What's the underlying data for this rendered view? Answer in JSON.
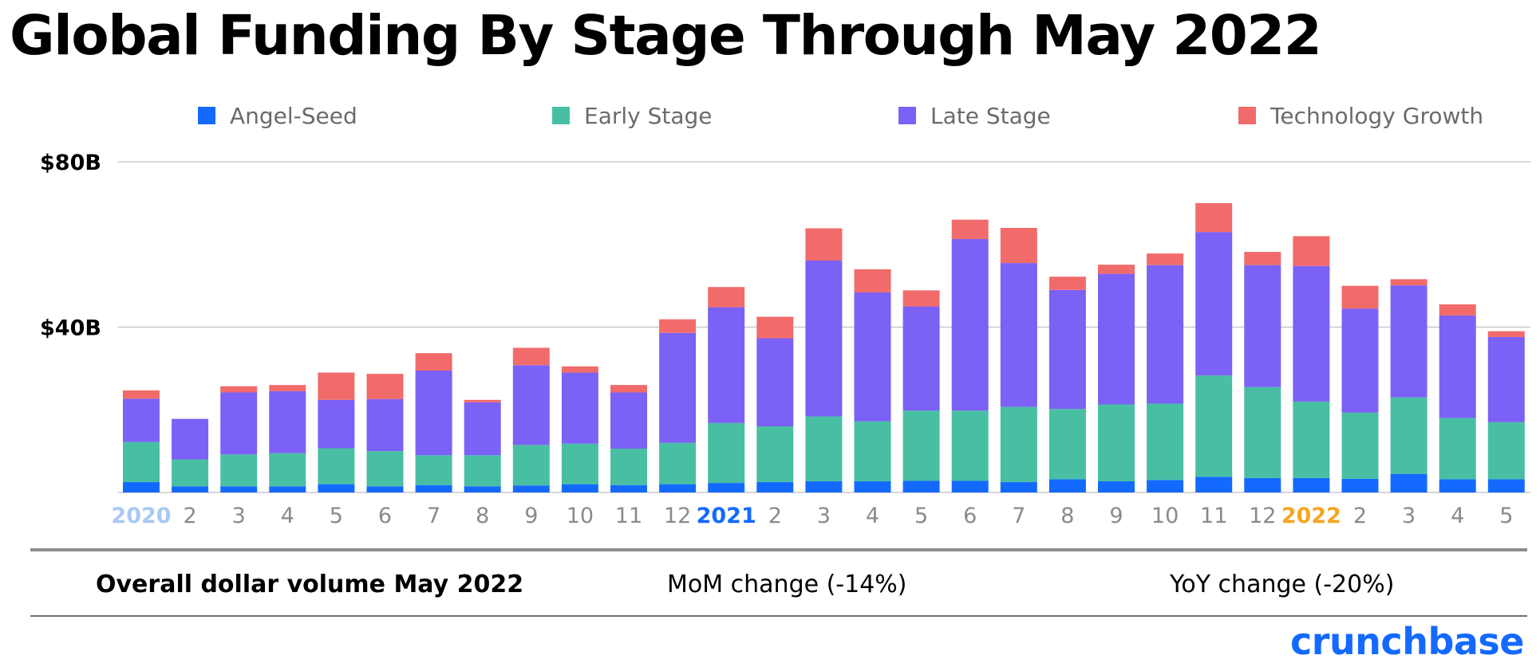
{
  "title": "Global Funding By Stage Through May 2022",
  "summary": {
    "overall": "Overall dollar volume May 2022",
    "mom": "MoM change (-14%)",
    "yoy": "YoY change (-20%)"
  },
  "brand": "crunchbase",
  "chart_data": {
    "type": "bar",
    "stacked": true,
    "categories": [
      "2020",
      "2",
      "3",
      "4",
      "5",
      "6",
      "7",
      "8",
      "9",
      "10",
      "11",
      "12",
      "2021",
      "2",
      "3",
      "4",
      "5",
      "6",
      "7",
      "8",
      "9",
      "10",
      "11",
      "12",
      "2022",
      "2",
      "3",
      "4",
      "5"
    ],
    "category_colors": {
      "2020": "#a9c8f5",
      "2021": "#146aff",
      "2022": "#f5a623",
      "default": "#8a8a8a"
    },
    "series": [
      {
        "name": "Angel-Seed",
        "color": "#146aff",
        "values": [
          2.5,
          1.5,
          1.5,
          1.5,
          2,
          1.5,
          1.8,
          1.5,
          1.7,
          2,
          1.8,
          2,
          2.3,
          2.5,
          2.7,
          2.7,
          2.8,
          2.8,
          2.5,
          3.2,
          2.7,
          3,
          3.8,
          3.5,
          3.5,
          3.3,
          4.5,
          3.2,
          3.2
        ]
      },
      {
        "name": "Early Stage",
        "color": "#48bfa3",
        "values": [
          9.7,
          6.5,
          7.7,
          8,
          8.7,
          8.5,
          7.2,
          7.5,
          9.8,
          9.8,
          8.8,
          10,
          14.5,
          13.5,
          15.7,
          14.5,
          17,
          17,
          18.2,
          17,
          18.6,
          18.5,
          24.5,
          22,
          18.5,
          16,
          18.5,
          14.8,
          13.8
        ]
      },
      {
        "name": "Late Stage",
        "color": "#7b61f5",
        "values": [
          10.5,
          9.8,
          15,
          15,
          11.7,
          12.6,
          20.5,
          12.8,
          19.3,
          17.2,
          13.6,
          26.6,
          28,
          21.3,
          37.7,
          31.2,
          25.2,
          41.5,
          34.8,
          28.8,
          31.6,
          33.5,
          34.7,
          29.5,
          32.8,
          25.2,
          27.1,
          24.8,
          20.6
        ]
      },
      {
        "name": "Technology Growth",
        "color": "#f26b6b",
        "values": [
          2,
          0,
          1.5,
          1.5,
          6.6,
          6.1,
          4.2,
          0.6,
          4.2,
          1.5,
          1.8,
          3.3,
          4.9,
          5.2,
          7.8,
          5.6,
          3.9,
          4.7,
          8.5,
          3.2,
          2.2,
          2.8,
          7,
          3.2,
          7.2,
          5.5,
          1.5,
          2.7,
          1.4
        ]
      }
    ],
    "yticks": [
      "$40B",
      "$80B"
    ],
    "ylim": [
      0,
      80
    ],
    "grid": true,
    "legend": "top"
  }
}
